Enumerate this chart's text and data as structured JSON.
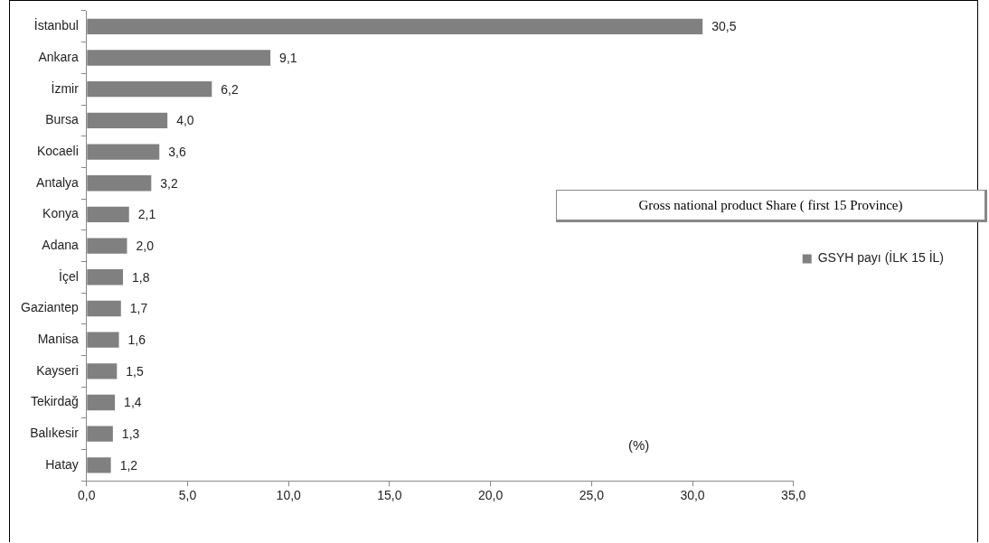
{
  "chart_data": {
    "type": "bar",
    "orientation": "horizontal",
    "categories": [
      "İstanbul",
      "Ankara",
      "İzmir",
      "Bursa",
      "Kocaeli",
      "Antalya",
      "Konya",
      "Adana",
      "İçel",
      "Gaziantep",
      "Manisa",
      "Kayseri",
      "Tekirdağ",
      "Balıkesir",
      "Hatay"
    ],
    "series": [
      {
        "name": "GSYH payı (İLK 15 İL)",
        "color": "#808080",
        "values": [
          30.5,
          9.1,
          6.2,
          4.0,
          3.6,
          3.2,
          2.1,
          2.0,
          1.8,
          1.7,
          1.6,
          1.5,
          1.4,
          1.3,
          1.2
        ]
      }
    ],
    "value_labels": [
      "30,5",
      "9,1",
      "6,2",
      "4,0",
      "3,6",
      "3,2",
      "2,1",
      "2,0",
      "1,8",
      "1,7",
      "1,6",
      "1,5",
      "1,4",
      "1,3",
      "1,2"
    ],
    "xlim": [
      0,
      35
    ],
    "xticks": [
      {
        "value": 0,
        "label": "0,0"
      },
      {
        "value": 5,
        "label": "5,0"
      },
      {
        "value": 10,
        "label": "10,0"
      },
      {
        "value": 15,
        "label": "15,0"
      },
      {
        "value": 20,
        "label": "20,0"
      },
      {
        "value": 25,
        "label": "25,0"
      },
      {
        "value": 30,
        "label": "30,0"
      },
      {
        "value": 35,
        "label": "35,0"
      }
    ],
    "grid": false,
    "legend": "right",
    "annotations": [
      "(%)",
      "Gross national product Share ( first 15 Province)"
    ]
  }
}
